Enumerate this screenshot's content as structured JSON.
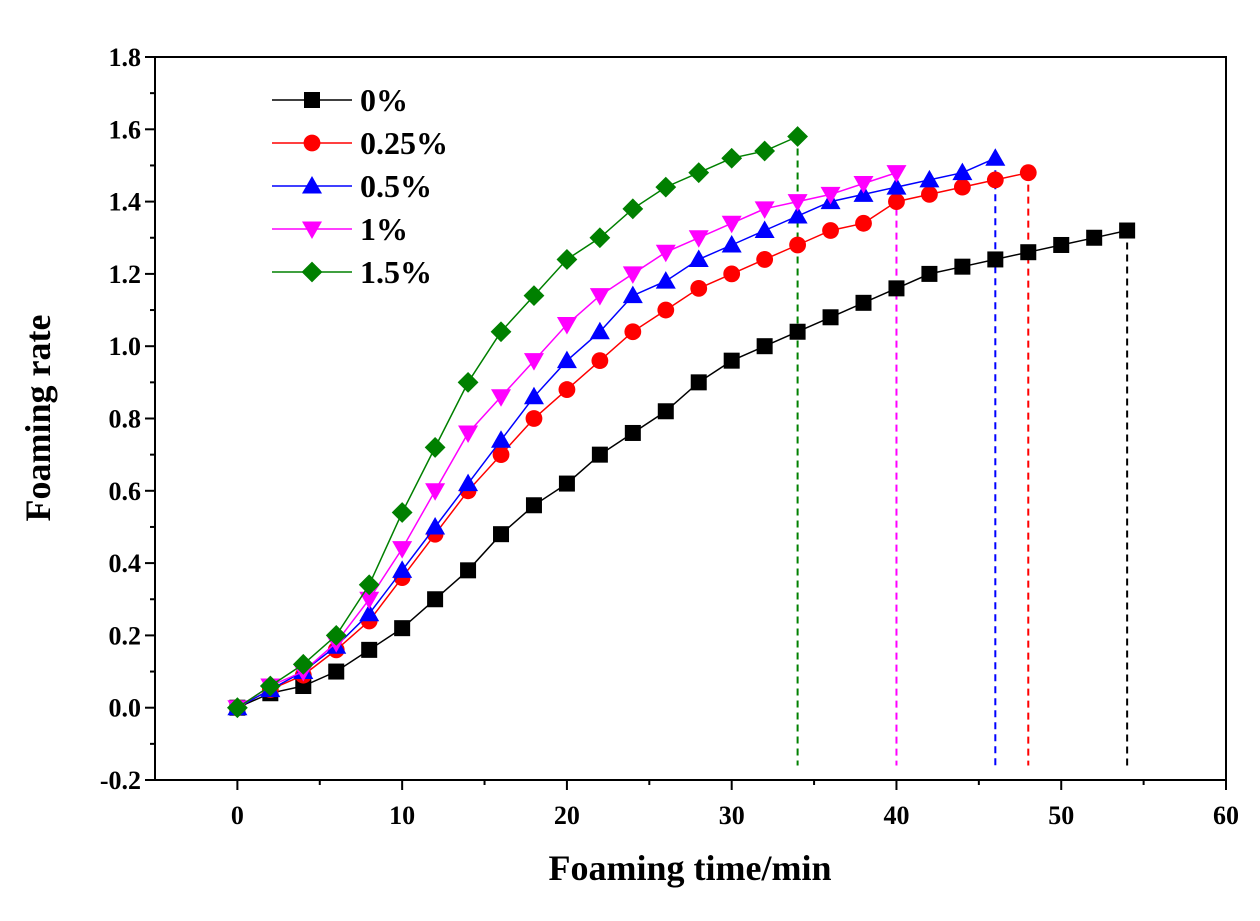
{
  "chart_data": {
    "type": "line",
    "title": "",
    "xlabel": "Foaming time/min",
    "ylabel": "Foaming rate",
    "xlim": [
      -5,
      60
    ],
    "ylim": [
      -0.2,
      1.8
    ],
    "xticks": [
      0,
      10,
      20,
      30,
      40,
      50,
      60
    ],
    "xtick_labels": [
      "0",
      "10",
      "20",
      "30",
      "40",
      "50",
      "60"
    ],
    "yticks": [
      -0.2,
      0.0,
      0.2,
      0.4,
      0.6,
      0.8,
      1.0,
      1.2,
      1.4,
      1.6,
      1.8
    ],
    "ytick_labels": [
      "-0.2",
      "0.0",
      "0.2",
      "0.4",
      "0.6",
      "0.8",
      "1.0",
      "1.2",
      "1.4",
      "1.6",
      "1.8"
    ],
    "grid": false,
    "legend_position": "top-left",
    "series": [
      {
        "name": "0%",
        "color": "#000000",
        "marker": "square",
        "end_x": 54,
        "x": [
          0,
          2,
          4,
          6,
          8,
          10,
          12,
          14,
          16,
          18,
          20,
          22,
          24,
          26,
          28,
          30,
          32,
          34,
          36,
          38,
          40,
          42,
          44,
          46,
          48,
          50,
          52,
          54
        ],
        "y": [
          0,
          0.04,
          0.06,
          0.1,
          0.16,
          0.22,
          0.3,
          0.38,
          0.48,
          0.56,
          0.62,
          0.7,
          0.76,
          0.82,
          0.9,
          0.96,
          1.0,
          1.04,
          1.08,
          1.12,
          1.16,
          1.2,
          1.22,
          1.24,
          1.26,
          1.28,
          1.3,
          1.32
        ]
      },
      {
        "name": "0.25%",
        "color": "#ff0000",
        "marker": "circle",
        "end_x": 48,
        "x": [
          0,
          2,
          4,
          6,
          8,
          10,
          12,
          14,
          16,
          18,
          20,
          22,
          24,
          26,
          28,
          30,
          32,
          34,
          36,
          38,
          40,
          42,
          44,
          46,
          48
        ],
        "y": [
          0,
          0.05,
          0.09,
          0.16,
          0.24,
          0.36,
          0.48,
          0.6,
          0.7,
          0.8,
          0.88,
          0.96,
          1.04,
          1.1,
          1.16,
          1.2,
          1.24,
          1.28,
          1.32,
          1.34,
          1.4,
          1.42,
          1.44,
          1.46,
          1.48
        ]
      },
      {
        "name": "0.5%",
        "color": "#0000ff",
        "marker": "triangle-up",
        "end_x": 46,
        "x": [
          0,
          2,
          4,
          6,
          8,
          10,
          12,
          14,
          16,
          18,
          20,
          22,
          24,
          26,
          28,
          30,
          32,
          34,
          36,
          38,
          40,
          42,
          44,
          46
        ],
        "y": [
          0,
          0.05,
          0.1,
          0.17,
          0.26,
          0.38,
          0.5,
          0.62,
          0.74,
          0.86,
          0.96,
          1.04,
          1.14,
          1.18,
          1.24,
          1.28,
          1.32,
          1.36,
          1.4,
          1.42,
          1.44,
          1.46,
          1.48,
          1.52
        ]
      },
      {
        "name": "1%",
        "color": "#ff00ff",
        "marker": "triangle-down",
        "end_x": 40,
        "x": [
          0,
          2,
          4,
          6,
          8,
          10,
          12,
          14,
          16,
          18,
          20,
          22,
          24,
          26,
          28,
          30,
          32,
          34,
          36,
          38,
          40
        ],
        "y": [
          0,
          0.06,
          0.1,
          0.18,
          0.3,
          0.44,
          0.6,
          0.76,
          0.86,
          0.96,
          1.06,
          1.14,
          1.2,
          1.26,
          1.3,
          1.34,
          1.38,
          1.4,
          1.42,
          1.45,
          1.48
        ]
      },
      {
        "name": "1.5%",
        "color": "#008000",
        "marker": "diamond",
        "end_x": 34,
        "x": [
          0,
          2,
          4,
          6,
          8,
          10,
          12,
          14,
          16,
          18,
          20,
          22,
          24,
          26,
          28,
          30,
          32,
          34
        ],
        "y": [
          0,
          0.06,
          0.12,
          0.2,
          0.34,
          0.54,
          0.72,
          0.9,
          1.04,
          1.14,
          1.24,
          1.3,
          1.38,
          1.44,
          1.48,
          1.52,
          1.54,
          1.58
        ]
      }
    ]
  }
}
